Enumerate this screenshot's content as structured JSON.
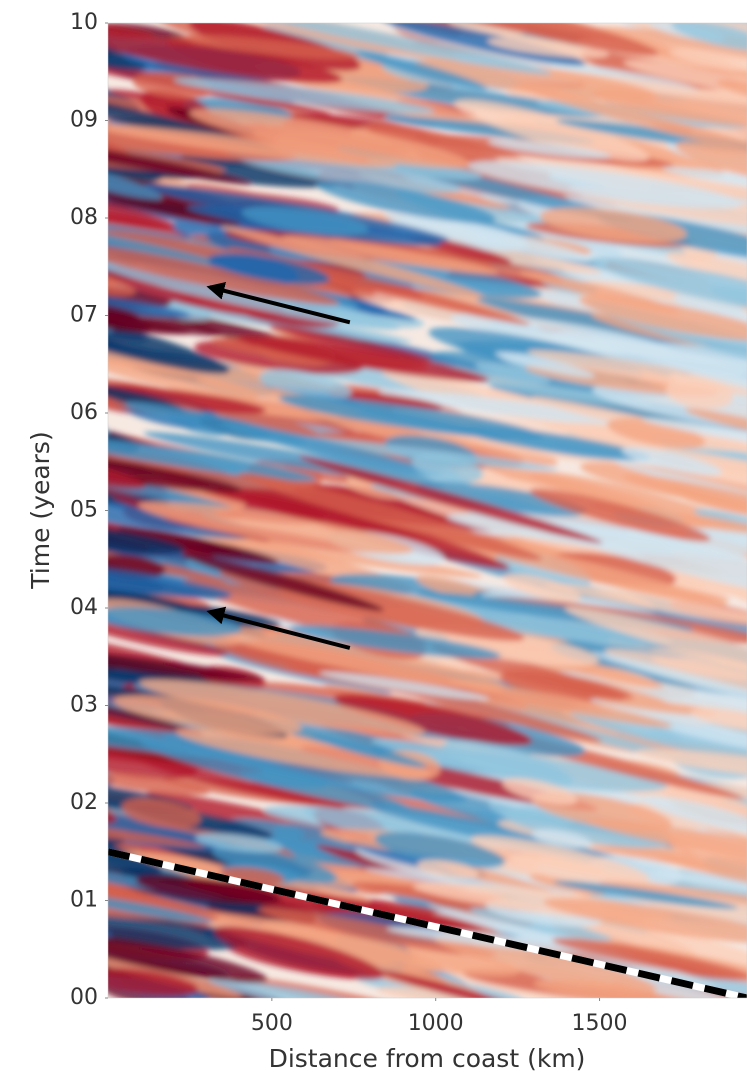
{
  "chart_data": {
    "type": "heatmap",
    "x_label": "Distance from coast (km)",
    "y_label": "Time (years)",
    "xlim": [
      0,
      1950
    ],
    "ylim": [
      0,
      10
    ],
    "xticks": [
      500,
      1000,
      1500
    ],
    "yticks": [
      {
        "value": 0,
        "label": "00"
      },
      {
        "value": 1,
        "label": "01"
      },
      {
        "value": 2,
        "label": "02"
      },
      {
        "value": 3,
        "label": "03"
      },
      {
        "value": 4,
        "label": "04"
      },
      {
        "value": 5,
        "label": "05"
      },
      {
        "value": 6,
        "label": "06"
      },
      {
        "value": 7,
        "label": "07"
      },
      {
        "value": 8,
        "label": "08"
      },
      {
        "value": 9,
        "label": "09"
      },
      10
    ],
    "lines": [
      {
        "x": [
          0,
          1950
        ],
        "y": [
          1.5,
          0
        ],
        "style": "dashed",
        "color": "#000000"
      }
    ],
    "arrows": [
      {
        "x": [
          738,
          311
        ],
        "y": [
          6.93,
          7.29
        ],
        "color": "#000000"
      },
      {
        "x": [
          738,
          311
        ],
        "y": [
          3.59,
          3.96
        ],
        "color": "#000000"
      }
    ]
  }
}
